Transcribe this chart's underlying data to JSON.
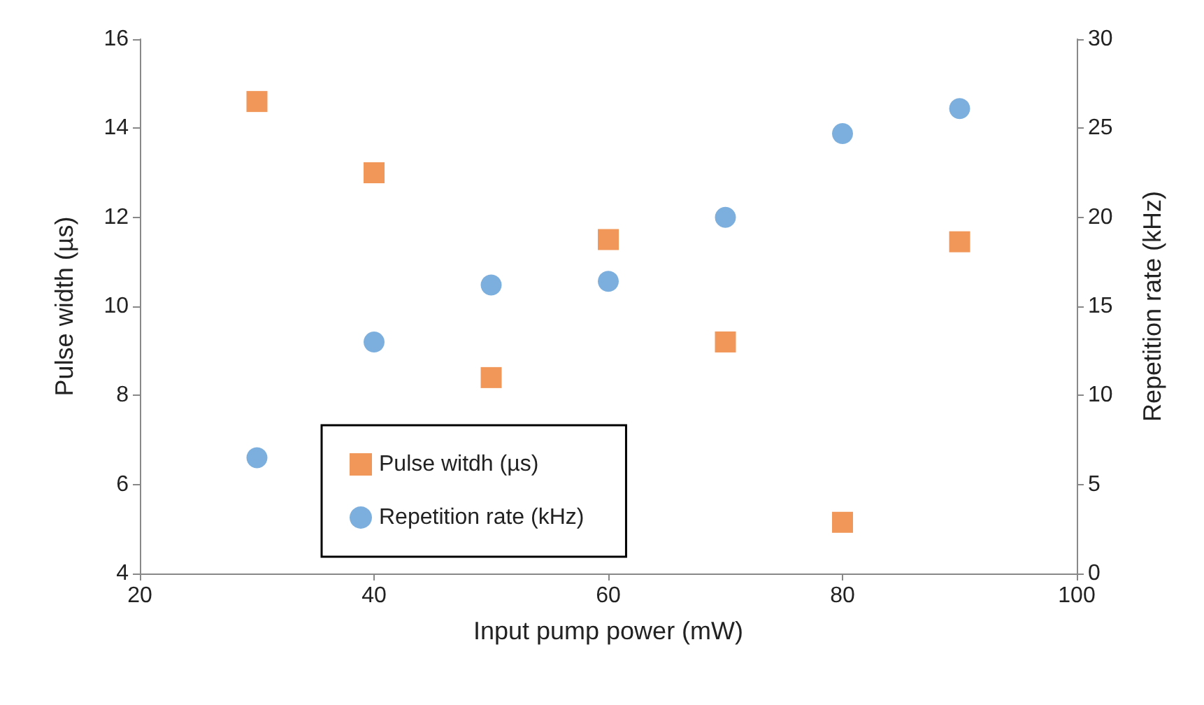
{
  "chart_data": {
    "type": "scatter",
    "xlabel": "Input pump power (mW)",
    "ylabel": "Pulse width (µs)",
    "y2label": "Repetition rate (kHz)",
    "x": [
      30,
      40,
      50,
      60,
      70,
      80,
      90
    ],
    "series": [
      {
        "name": "Pulse witdh (µs)",
        "color": "#ed7d31",
        "marker": "square",
        "values": [
          14.6,
          13.0,
          8.4,
          11.5,
          9.2,
          5.15,
          11.45
        ]
      },
      {
        "name": "Repetition rate (kHz)",
        "color": "#5b9bd5",
        "marker": "circle",
        "axis": "y2",
        "values": [
          6.5,
          13.0,
          16.2,
          16.4,
          20.0,
          24.7,
          26.1
        ]
      }
    ],
    "xlim": [
      20,
      100
    ],
    "xticks": [
      20,
      40,
      60,
      80,
      100
    ],
    "ylim": [
      4,
      16
    ],
    "yticks": [
      4,
      6,
      8,
      10,
      12,
      14,
      16
    ],
    "y2lim": [
      0,
      30
    ],
    "y2ticks": [
      0,
      5,
      10,
      15,
      20,
      25,
      30
    ],
    "grid": false,
    "legend": "bottom"
  }
}
